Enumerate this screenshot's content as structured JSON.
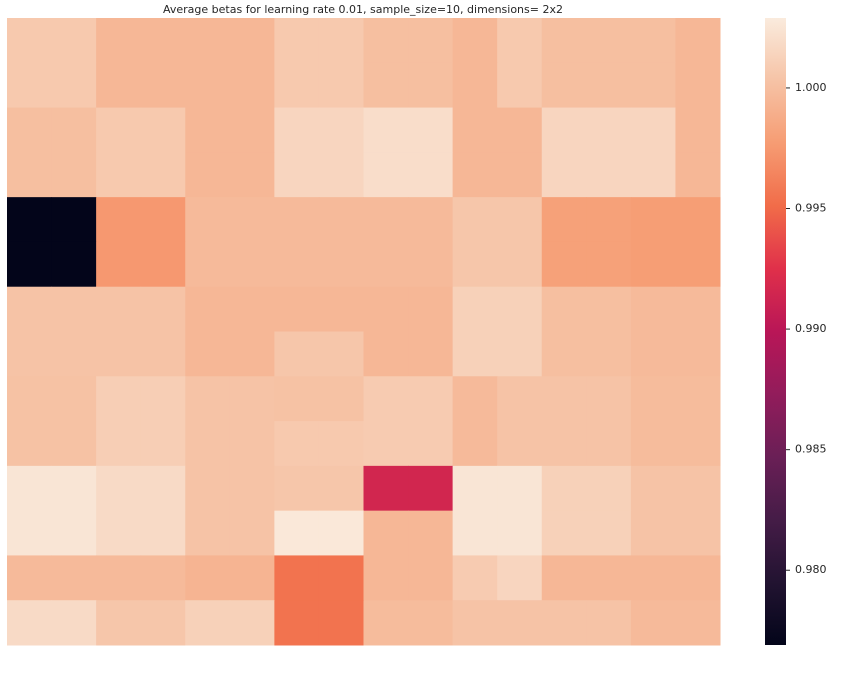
{
  "chart_data": {
    "type": "heatmap",
    "title": "Average betas for learning rate 0.01, sample_size=10, dimensions= 2x2",
    "colormap": [
      "#03051a",
      "#221331",
      "#451c47",
      "#6a1f56",
      "#921c5b",
      "#b91657",
      "#e0304a",
      "#f16c49",
      "#f69c73",
      "#f6c3a6",
      "#faebdd"
    ],
    "zlim": [
      0.9769,
      1.0029
    ],
    "zticks": [
      {
        "value": 0.98,
        "label": "0.980"
      },
      {
        "value": 0.985,
        "label": "0.985"
      },
      {
        "value": 0.99,
        "label": "0.990"
      },
      {
        "value": 0.995,
        "label": "0.995"
      },
      {
        "value": 1.0,
        "label": "1.000"
      }
    ],
    "values": [
      [
        1.0007,
        1.0007,
        0.9995,
        0.9995,
        0.9995,
        0.9995,
        1.0007,
        1.0007,
        1.0,
        1.0,
        0.9995,
        1.0007,
        1.0,
        1.0,
        1.0,
        0.9995
      ],
      [
        1.0007,
        1.0007,
        0.9995,
        0.9995,
        0.9995,
        0.9995,
        1.0007,
        1.0007,
        1.0,
        1.0,
        0.9995,
        1.0007,
        1.0,
        1.0,
        1.0,
        0.9995
      ],
      [
        1.0,
        1.0,
        1.0007,
        1.0007,
        0.9995,
        0.9995,
        1.0015,
        1.0015,
        1.002,
        1.002,
        0.9995,
        0.9995,
        1.0015,
        1.0015,
        1.0015,
        0.9995
      ],
      [
        1.0,
        1.0,
        1.0007,
        1.0007,
        0.9995,
        0.9995,
        1.0015,
        1.0015,
        1.002,
        1.002,
        0.9995,
        0.9995,
        1.0015,
        1.0015,
        1.0015,
        0.9995
      ],
      [
        0.9769,
        0.9769,
        0.9975,
        0.9975,
        0.9997,
        0.9997,
        0.9997,
        0.9997,
        0.9997,
        0.9997,
        1.0005,
        1.0005,
        0.998,
        0.998,
        0.9978,
        0.9978
      ],
      [
        0.9769,
        0.9769,
        0.9975,
        0.9975,
        0.9997,
        0.9997,
        0.9997,
        0.9997,
        0.9997,
        0.9997,
        1.0005,
        1.0005,
        0.998,
        0.998,
        0.9978,
        0.9978
      ],
      [
        1.0003,
        1.0003,
        1.0003,
        1.0003,
        0.9995,
        0.9995,
        0.9995,
        0.9995,
        0.9995,
        0.9995,
        1.0012,
        1.0012,
        1.0,
        1.0,
        0.9997,
        0.9997
      ],
      [
        1.0003,
        1.0003,
        1.0003,
        1.0003,
        0.9995,
        0.9995,
        1.0005,
        1.0005,
        0.9995,
        0.9995,
        1.0012,
        1.0012,
        1.0,
        1.0,
        0.9997,
        0.9997
      ],
      [
        1.0002,
        1.0002,
        1.001,
        1.001,
        1.0003,
        1.0003,
        1.0002,
        1.0002,
        1.0008,
        1.0008,
        0.9997,
        1.0003,
        1.0003,
        1.0003,
        0.9998,
        0.9998
      ],
      [
        1.0002,
        1.0002,
        1.001,
        1.001,
        1.0003,
        1.0003,
        1.0007,
        1.0007,
        1.0008,
        1.0008,
        0.9997,
        1.0003,
        1.0003,
        1.0003,
        0.9998,
        0.9998
      ],
      [
        1.0025,
        1.0025,
        1.0018,
        1.0018,
        1.0003,
        1.0003,
        1.0005,
        1.0005,
        0.9915,
        0.9915,
        1.0025,
        1.0025,
        1.0012,
        1.0012,
        1.0003,
        1.0003
      ],
      [
        1.0025,
        1.0025,
        1.0018,
        1.0018,
        1.0003,
        1.0003,
        1.0027,
        1.0027,
        0.9995,
        0.9995,
        1.0025,
        1.0025,
        1.0012,
        1.0012,
        1.0003,
        1.0003
      ],
      [
        0.9997,
        0.9997,
        0.9997,
        0.9997,
        0.9993,
        0.9993,
        0.9955,
        0.9955,
        0.9995,
        0.9995,
        1.0008,
        1.0015,
        0.9995,
        0.9995,
        0.9995,
        0.9995
      ],
      [
        1.0018,
        1.0018,
        1.0005,
        1.0005,
        1.0012,
        1.0012,
        0.9955,
        0.9955,
        0.9998,
        0.9998,
        1.0003,
        1.0003,
        1.0003,
        1.0003,
        0.9997,
        0.9997
      ]
    ]
  }
}
